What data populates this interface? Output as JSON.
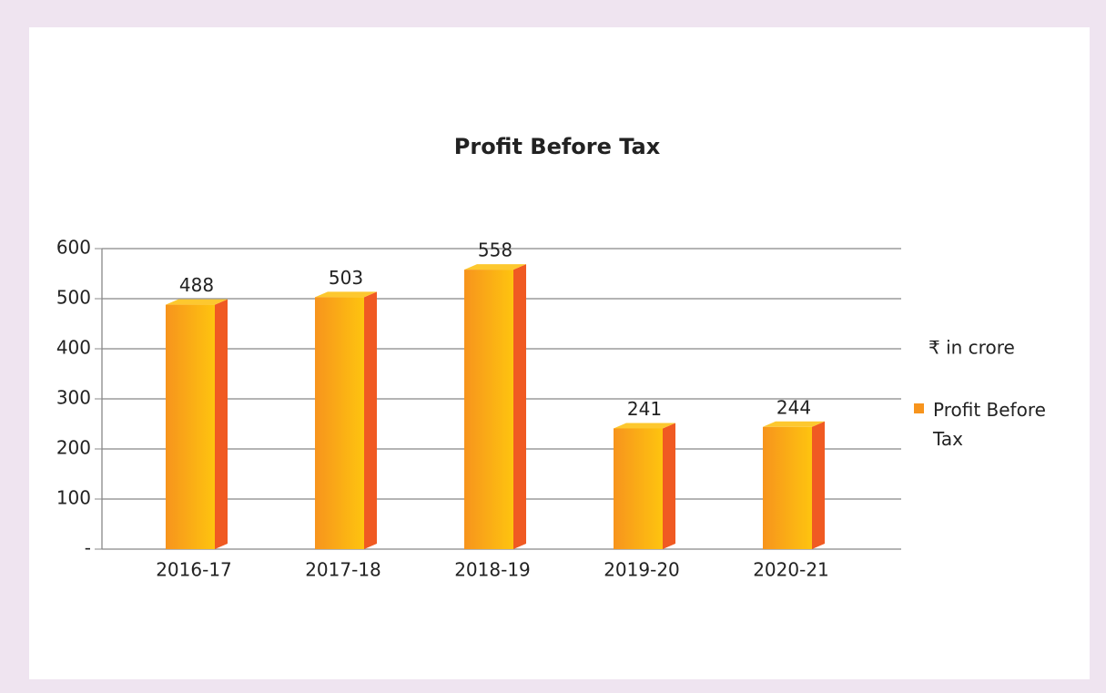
{
  "chart_data": {
    "type": "bar",
    "title": "Profit Before Tax",
    "unit_note": "₹ in crore",
    "categories": [
      "2016-17",
      "2017-18",
      "2018-19",
      "2019-20",
      "2020-21"
    ],
    "series": [
      {
        "name": "Profit Before Tax",
        "color": "#f7941d",
        "values": [
          488,
          503,
          558,
          241,
          244
        ]
      }
    ],
    "ylim": [
      0,
      600
    ],
    "yticks": [
      {
        "value": 0,
        "label": "-"
      },
      100,
      200,
      300,
      400,
      500,
      600
    ],
    "grid": true,
    "legend": "right"
  }
}
